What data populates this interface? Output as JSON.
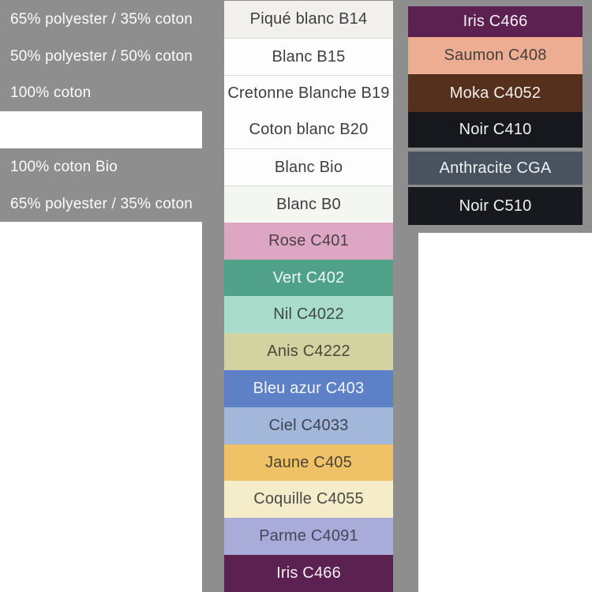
{
  "palette": {
    "page_background": "#ffffff",
    "panel_gray": "#8e8e8e",
    "divider_line": "#d9d9d9",
    "light_label_text": "#424242",
    "dark_swatch_text": "#f2f2f2",
    "left_panel_text": "#fdfdfd"
  },
  "left_panel": {
    "rows": [
      {
        "label": "65% polyester / 35% coton",
        "blank": false
      },
      {
        "label": "50% polyester / 50% coton",
        "blank": false
      },
      {
        "label": "100% coton",
        "blank": false
      },
      {
        "label": "",
        "blank": true
      },
      {
        "label": "100% coton Bio",
        "blank": false
      },
      {
        "label": "65% polyester / 35% coton",
        "blank": false
      }
    ]
  },
  "middle_column": {
    "swatches": [
      {
        "label": "Piqué blanc B14",
        "bg": "#f1f0ec",
        "text_color": "#3e3e3e",
        "divider": false,
        "texture": "pique"
      },
      {
        "label": "Blanc B15",
        "bg": "#fdfdfd",
        "text_color": "#3e3e3e",
        "divider": true,
        "texture": ""
      },
      {
        "label": "Cretonne Blanche B19",
        "bg": "#fdfdfd",
        "text_color": "#3e3e3e",
        "divider": true,
        "texture": ""
      },
      {
        "label": "Coton blanc B20",
        "bg": "#fdfdfd",
        "text_color": "#3e3e3e",
        "divider": false,
        "texture": ""
      },
      {
        "label": "Blanc Bio",
        "bg": "#fdfdfd",
        "text_color": "#3e3e3e",
        "divider": true,
        "texture": ""
      },
      {
        "label": "Blanc B0",
        "bg": "#f3f6f1",
        "text_color": "#3e3e3e",
        "divider": true,
        "texture": ""
      },
      {
        "label": "Rose C401",
        "bg": "#dda6c2",
        "text_color": "#4c4048",
        "divider": false,
        "texture": "soft"
      },
      {
        "label": "Vert C402",
        "bg": "#4fa187",
        "text_color": "#f2f6f4",
        "divider": false,
        "texture": ""
      },
      {
        "label": "Nil C4022",
        "bg": "#a9dcca",
        "text_color": "#3d4944",
        "divider": false,
        "texture": ""
      },
      {
        "label": "Anis C4222",
        "bg": "#d2d3a0",
        "text_color": "#47483a",
        "divider": false,
        "texture": ""
      },
      {
        "label": "Bleu azur C403",
        "bg": "#5d80c6",
        "text_color": "#f4f6fb",
        "divider": false,
        "texture": ""
      },
      {
        "label": "Ciel C4033",
        "bg": "#a2b7da",
        "text_color": "#3e4556",
        "divider": false,
        "texture": ""
      },
      {
        "label": "Jaune C405",
        "bg": "#f0c268",
        "text_color": "#4c4433",
        "divider": false,
        "texture": "twill"
      },
      {
        "label": "Coquille C4055",
        "bg": "#f5edca",
        "text_color": "#4b4a44",
        "divider": false,
        "texture": ""
      },
      {
        "label": "Parme C4091",
        "bg": "#a9acd8",
        "text_color": "#45455c",
        "divider": false,
        "texture": "soft"
      },
      {
        "label": "Iris C466",
        "bg": "#5b2150",
        "text_color": "#f6eff4",
        "divider": false,
        "texture": ""
      }
    ]
  },
  "right_panel": {
    "swatches": [
      {
        "label": "Iris C466",
        "bg": "#5d2151",
        "text_color": "#f6eff4",
        "texture": ""
      },
      {
        "label": "Saumon C408",
        "bg": "#edad93",
        "text_color": "#46403c",
        "texture": "soft"
      },
      {
        "label": "Moka C4052",
        "bg": "#55301c",
        "text_color": "#f4efec",
        "texture": ""
      },
      {
        "label": "Noir C410",
        "bg": "#16181d",
        "text_color": "#f2f2f2",
        "texture": ""
      },
      {
        "label": "Anthracite CGA",
        "bg": "#49535f",
        "text_color": "#eef1f4",
        "texture": "weave"
      },
      {
        "label": "Noir C510",
        "bg": "#17191f",
        "text_color": "#f2f2f2",
        "texture": ""
      }
    ]
  },
  "chart_data": {
    "type": "table",
    "columns": [
      "composition",
      "color_name",
      "hex"
    ],
    "rows": [
      [
        "65% polyester / 35% coton",
        "Piqué blanc B14",
        "#f1f0ec"
      ],
      [
        "50% polyester / 50% coton",
        "Blanc B15",
        "#fdfdfd"
      ],
      [
        "100% coton",
        "Cretonne Blanche B19",
        "#fdfdfd"
      ],
      [
        "",
        "Coton blanc B20",
        "#fdfdfd"
      ],
      [
        "100% coton Bio",
        "Blanc Bio",
        "#fdfdfd"
      ],
      [
        "65% polyester / 35% coton",
        "Blanc B0",
        "#f3f6f1"
      ],
      [
        "",
        "Rose C401",
        "#dda6c2"
      ],
      [
        "",
        "Vert C402",
        "#4fa187"
      ],
      [
        "",
        "Nil C4022",
        "#a9dcca"
      ],
      [
        "",
        "Anis C4222",
        "#d2d3a0"
      ],
      [
        "",
        "Bleu azur C403",
        "#5d80c6"
      ],
      [
        "",
        "Ciel C4033",
        "#a2b7da"
      ],
      [
        "",
        "Jaune C405",
        "#f0c268"
      ],
      [
        "",
        "Coquille C4055",
        "#f5edca"
      ],
      [
        "",
        "Parme C4091",
        "#a9acd8"
      ],
      [
        "",
        "Iris C466",
        "#5b2150"
      ],
      [
        "",
        "Iris C466",
        "#5d2151"
      ],
      [
        "",
        "Saumon C408",
        "#edad93"
      ],
      [
        "",
        "Moka C4052",
        "#55301c"
      ],
      [
        "",
        "Noir C410",
        "#16181d"
      ],
      [
        "",
        "Anthracite CGA",
        "#49535f"
      ],
      [
        "",
        "Noir C510",
        "#17191f"
      ]
    ],
    "layout": "three-column color chart: compositions left, white/colored swatch list center (full height), dark swatch list top right"
  }
}
